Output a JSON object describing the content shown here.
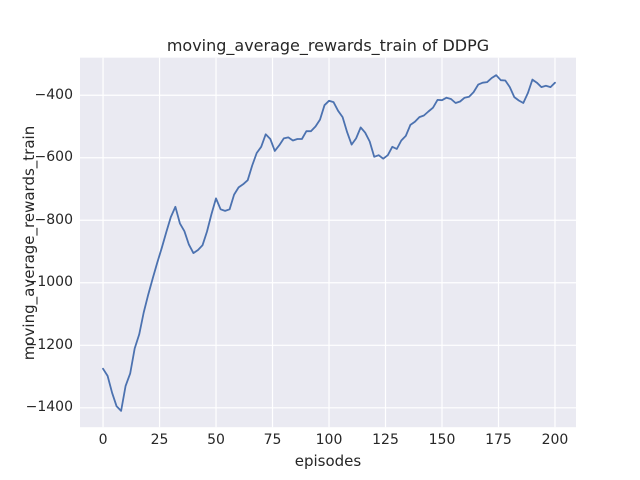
{
  "figure": {
    "title": "moving_average_rewards_train of DDPG",
    "xlabel": "episodes",
    "ylabel": "moving_average_rewards_train"
  },
  "colors": {
    "line": "#4c72b0",
    "axes_background": "#eaeaf2",
    "grid": "#ffffff",
    "figure_background": "#ffffff",
    "text": "#262626"
  },
  "chart_data": {
    "type": "line",
    "title": "moving_average_rewards_train of DDPG",
    "xlabel": "episodes",
    "ylabel": "moving_average_rewards_train",
    "xlim": [
      -10.2,
      209.3
    ],
    "ylim": [
      -1462,
      -280
    ],
    "grid": true,
    "legend": false,
    "xticks": {
      "values": [
        0,
        25,
        50,
        75,
        100,
        125,
        150,
        175,
        200
      ],
      "labels": [
        "0",
        "25",
        "50",
        "75",
        "100",
        "125",
        "150",
        "175",
        "200"
      ]
    },
    "yticks": {
      "values": [
        -400,
        -600,
        -800,
        -1000,
        -1200,
        -1400
      ],
      "labels": [
        "−400",
        "−600",
        "−800",
        "−1000",
        "−1200",
        "−1400"
      ]
    },
    "series": [
      {
        "name": "DDPG moving_average_rewards_train",
        "x": [
          0,
          2,
          4,
          6,
          8,
          10,
          12,
          14,
          16,
          18,
          20,
          22,
          24,
          26,
          28,
          30,
          32,
          34,
          36,
          38,
          40,
          42,
          44,
          46,
          48,
          50,
          52,
          54,
          56,
          58,
          60,
          62,
          64,
          66,
          68,
          70,
          72,
          74,
          76,
          78,
          80,
          82,
          84,
          86,
          88,
          90,
          92,
          94,
          96,
          98,
          100,
          102,
          104,
          106,
          108,
          110,
          112,
          114,
          116,
          118,
          120,
          122,
          124,
          126,
          128,
          130,
          132,
          134,
          136,
          138,
          140,
          142,
          144,
          146,
          148,
          150,
          152,
          154,
          156,
          158,
          160,
          162,
          164,
          166,
          168,
          170,
          172,
          174,
          176,
          178,
          180,
          182,
          184,
          186,
          188,
          190,
          192,
          194,
          196,
          198,
          200
        ],
        "y": [
          -1275,
          -1298,
          -1352,
          -1395,
          -1410,
          -1330,
          -1290,
          -1210,
          -1165,
          -1095,
          -1038,
          -985,
          -935,
          -888,
          -838,
          -790,
          -757,
          -810,
          -835,
          -878,
          -905,
          -895,
          -880,
          -836,
          -780,
          -730,
          -765,
          -770,
          -765,
          -718,
          -695,
          -685,
          -672,
          -625,
          -585,
          -565,
          -525,
          -540,
          -578,
          -560,
          -538,
          -535,
          -545,
          -540,
          -540,
          -515,
          -515,
          -500,
          -478,
          -432,
          -418,
          -422,
          -450,
          -470,
          -518,
          -558,
          -538,
          -503,
          -520,
          -548,
          -597,
          -592,
          -603,
          -592,
          -565,
          -572,
          -545,
          -530,
          -495,
          -485,
          -470,
          -465,
          -452,
          -440,
          -415,
          -416,
          -408,
          -412,
          -425,
          -420,
          -408,
          -405,
          -390,
          -366,
          -360,
          -358,
          -345,
          -336,
          -352,
          -353,
          -374,
          -406,
          -417,
          -425,
          -393,
          -350,
          -360,
          -374,
          -370,
          -374,
          -360
        ]
      }
    ]
  }
}
